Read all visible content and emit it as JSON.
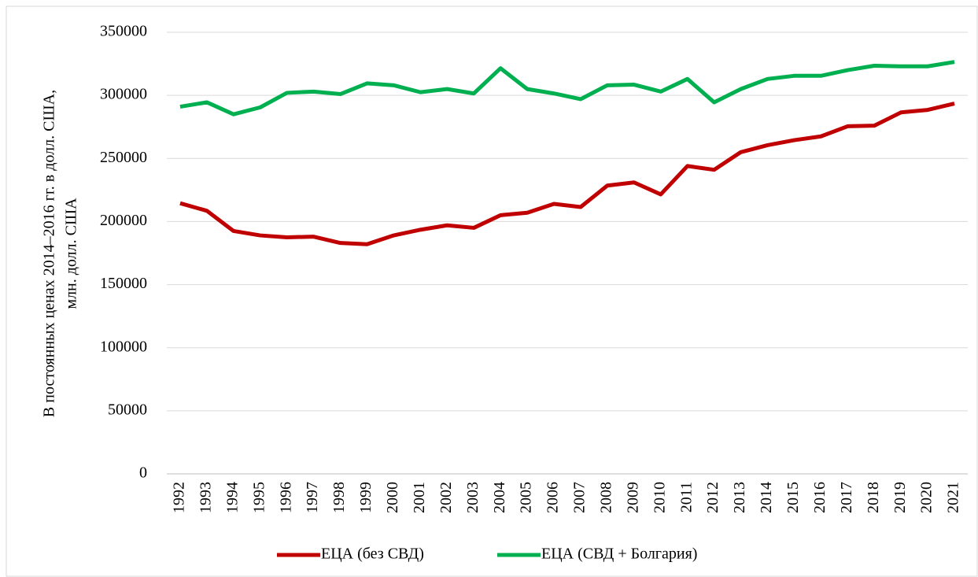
{
  "chart_data": {
    "type": "line",
    "ylabel": [
      "В постоянных ценах 2014–2016 гг. в долл. США,",
      "млн. долл. США"
    ],
    "categories": [
      "1992",
      "1993",
      "1994",
      "1995",
      "1996",
      "1997",
      "1998",
      "1999",
      "2000",
      "2001",
      "2002",
      "2003",
      "2004",
      "2005",
      "2006",
      "2007",
      "2008",
      "2009",
      "2010",
      "2011",
      "2012",
      "2013",
      "2014",
      "2015",
      "2016",
      "2017",
      "2018",
      "2019",
      "2020",
      "2021"
    ],
    "series": [
      {
        "name": "ЕЦА (без СВД)",
        "color": "#c00000",
        "values": [
          214500,
          208500,
          192500,
          189000,
          187500,
          188000,
          183000,
          182000,
          189000,
          193500,
          197000,
          195000,
          205000,
          207000,
          214000,
          211500,
          228500,
          231000,
          221500,
          244000,
          241000,
          255000,
          260500,
          264500,
          267500,
          275500,
          276000,
          286500,
          288500,
          293500
        ]
      },
      {
        "name": "ЕЦА (СВД + Болгария)",
        "color": "#00b050",
        "values": [
          291000,
          294500,
          285000,
          290500,
          302000,
          303000,
          301000,
          309500,
          308000,
          302500,
          305000,
          301500,
          321500,
          305000,
          301500,
          297000,
          308000,
          308500,
          303000,
          313000,
          294500,
          305000,
          313000,
          315500,
          315500,
          320000,
          323500,
          323000,
          323000,
          326500
        ]
      }
    ],
    "ylim": [
      0,
      350000
    ],
    "yticks": [
      0,
      50000,
      100000,
      150000,
      200000,
      250000,
      300000,
      350000
    ],
    "grid": true
  }
}
